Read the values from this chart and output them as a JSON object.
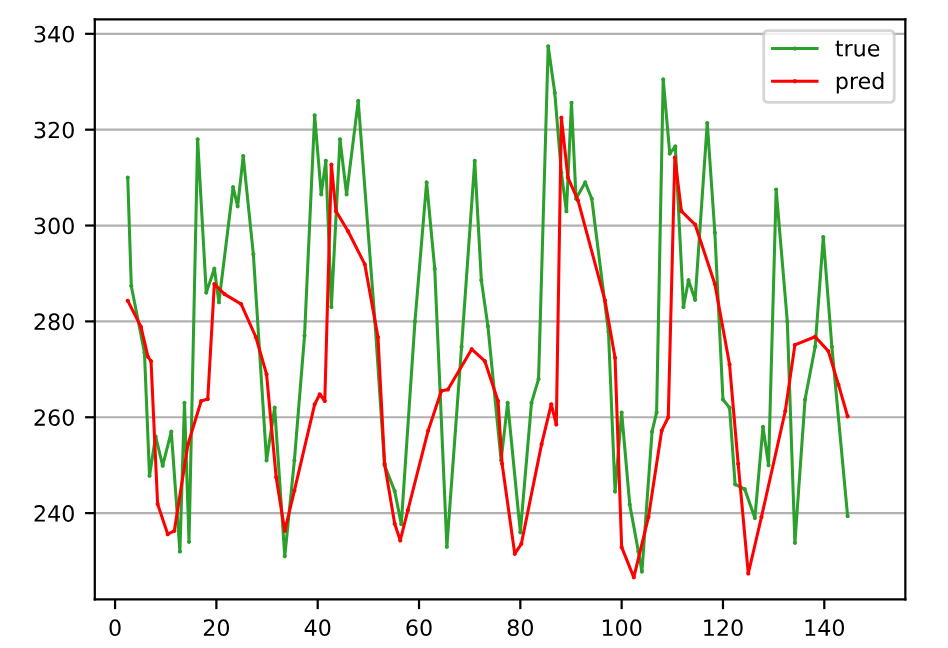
{
  "chart_data": {
    "type": "line",
    "xlim": [
      -4,
      156
    ],
    "xticks": [
      0,
      20,
      40,
      60,
      80,
      100,
      120,
      140
    ],
    "ylim": [
      222,
      343
    ],
    "yticks": [
      240,
      260,
      280,
      300,
      320,
      340
    ],
    "grid": "y",
    "legend": "top right",
    "marker": "circle",
    "line_style": "solid",
    "series": [
      {
        "name": "true",
        "color": "#2ca02c",
        "x": [
          2.5,
          3.2,
          5.8,
          6.8,
          8.0,
          9.4,
          11.1,
          12.8,
          13.7,
          14.6,
          16.3,
          18.0,
          19.6,
          20.5,
          23.3,
          24.2,
          25.3,
          27.3,
          29.9,
          31.5,
          33.5,
          35.4,
          37.4,
          39.4,
          40.7,
          41.6,
          42.7,
          44.4,
          45.7,
          48.0,
          51.3,
          53.2,
          55.2,
          56.5,
          59.2,
          61.5,
          63.1,
          65.5,
          68.4,
          71.0,
          72.3,
          73.6,
          76.2,
          77.5,
          80.0,
          82.2,
          83.6,
          85.5,
          86.8,
          88.1,
          89.1,
          90.1,
          91.0,
          92.8,
          94.1,
          97.4,
          98.7,
          100.0,
          101.6,
          103.3,
          104.0,
          106.0,
          106.9,
          108.2,
          109.5,
          110.6,
          112.2,
          113.2,
          114.5,
          116.9,
          118.4,
          120.0,
          121.3,
          122.4,
          124.3,
          126.3,
          127.9,
          129.0,
          130.5,
          132.7,
          134.2,
          136.2,
          138.2,
          139.8,
          141.5,
          144.6
        ],
        "values": [
          310,
          287.4,
          273.5,
          247.8,
          256,
          249.9,
          257,
          232,
          263,
          234,
          318,
          286,
          291,
          284,
          308,
          304,
          314.5,
          294,
          251,
          262,
          231,
          251,
          277,
          323,
          306.5,
          313.5,
          283,
          318,
          306.5,
          326,
          280,
          250,
          244.6,
          237.7,
          280,
          309,
          291,
          233,
          274.7,
          313.5,
          288.6,
          279,
          251,
          263,
          236,
          263,
          268,
          337.4,
          327.7,
          311,
          303,
          325.6,
          305.6,
          309,
          305.6,
          277.8,
          244.5,
          261,
          241.8,
          232,
          227.8,
          257,
          261,
          330.5,
          315,
          316.5,
          283,
          288.6,
          284.5,
          321.4,
          298.5,
          263.7,
          262,
          246,
          245,
          239,
          258,
          250,
          307.5,
          280,
          233.8,
          263.7,
          274.7,
          297.6,
          274.7,
          239.4
        ]
      },
      {
        "name": "pred",
        "color": "#ff0000",
        "x": [
          2.5,
          5.1,
          6.5,
          7.1,
          8.4,
          10.4,
          11.7,
          14.4,
          17.0,
          18.3,
          19.6,
          21.6,
          24.9,
          27.8,
          29.9,
          31.8,
          33.5,
          35.4,
          39.4,
          40.4,
          41.4,
          42.7,
          43.6,
          46.0,
          49.3,
          51.9,
          53.2,
          55.2,
          56.3,
          57.8,
          61.8,
          64.4,
          65.7,
          70.4,
          73.0,
          75.6,
          76.4,
          78.9,
          80.2,
          84.2,
          86.1,
          87.1,
          88.1,
          89.4,
          91.4,
          96.7,
          98.7,
          100.0,
          102.4,
          105.3,
          107.9,
          109.2,
          110.5,
          111.8,
          114.5,
          118.4,
          121.3,
          123.0,
          125.0,
          127.6,
          132.3,
          134.2,
          138.2,
          140.8,
          142.8,
          144.6
        ],
        "values": [
          284.3,
          278.9,
          272.6,
          271.7,
          241.9,
          235.6,
          236.3,
          254.4,
          263.4,
          263.8,
          287.8,
          285.7,
          283.6,
          276.7,
          269,
          247.5,
          236.3,
          244.7,
          262.7,
          264.8,
          263.4,
          312.7,
          303,
          298.8,
          291.9,
          276.7,
          250.3,
          237.8,
          234.3,
          240.6,
          257.2,
          265.5,
          265.8,
          274.2,
          271.7,
          263.4,
          250.3,
          231.5,
          233.6,
          254.4,
          262.7,
          258.5,
          322.5,
          310,
          305.2,
          284.4,
          272.4,
          232.9,
          226.6,
          239.2,
          257.2,
          260,
          314.2,
          303,
          300.2,
          287.8,
          271,
          250.3,
          227.4,
          239.2,
          261.3,
          275.1,
          276.8,
          273.8,
          266.8,
          260.2
        ]
      }
    ]
  }
}
